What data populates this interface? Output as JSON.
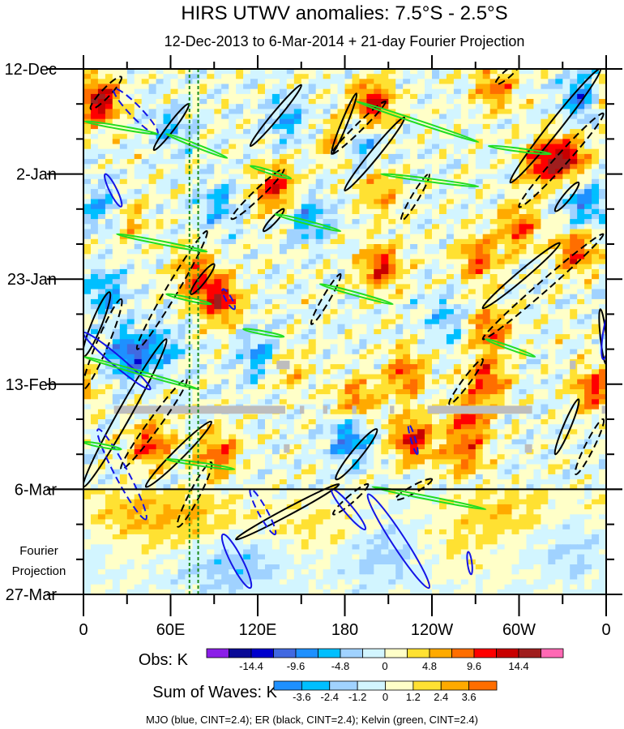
{
  "chart_data": {
    "type": "heatmap",
    "title": "HIRS UTWV anomalies: 7.5°S - 2.5°S",
    "subtitle": "12-Dec-2013 to 6-Mar-2014 + 21-day Fourier Projection",
    "x_axis": {
      "range_deg_east": [
        0,
        360
      ],
      "major_ticks": [
        0,
        60,
        120,
        180,
        240,
        300,
        360
      ],
      "tick_labels": [
        "0",
        "60E",
        "120E",
        "180",
        "120W",
        "60W",
        "0"
      ],
      "minor_step": 30
    },
    "y_axis": {
      "range_days": [
        0,
        105
      ],
      "major_ticks_days": [
        0,
        21,
        42,
        63,
        84,
        105
      ],
      "tick_labels": [
        "12-Dec",
        "2-Jan",
        "23-Jan",
        "13-Feb",
        "6-Mar",
        "27-Mar"
      ],
      "minor_step_days": 7,
      "projection_start_day": 84,
      "projection_label": [
        "Fourier",
        "Projection"
      ]
    },
    "reference_longitudes": [
      73,
      79
    ],
    "obs_colorbar": {
      "label": "Obs: K",
      "levels": [
        -16.8,
        -14.4,
        -12,
        -9.6,
        -7.2,
        -4.8,
        -2.4,
        0,
        2.4,
        4.8,
        7.2,
        9.6,
        12,
        14.4,
        16.8
      ],
      "tick_labels": [
        "-14.4",
        "-9.6",
        "-4.8",
        "0",
        "4.8",
        "9.6",
        "14.4"
      ],
      "tick_values": [
        -14.4,
        -9.6,
        -4.8,
        0,
        4.8,
        9.6,
        14.4
      ],
      "colors": [
        "#8b1ee8",
        "#0a0a96",
        "#0000cd",
        "#4169e1",
        "#1e90ff",
        "#00bfff",
        "#a0d2ff",
        "#d2f5ff",
        "#ffffc8",
        "#ffe132",
        "#ffaa00",
        "#ff6e00",
        "#ff0000",
        "#c80000",
        "#a01e1e",
        "#ff69b4"
      ]
    },
    "waves_colorbar": {
      "label": "Sum of Waves: K",
      "levels": [
        -3.6,
        -2.4,
        -1.2,
        0,
        1.2,
        2.4,
        3.6
      ],
      "tick_labels": [
        "-3.6",
        "-2.4",
        "-1.2",
        "0",
        "1.2",
        "2.4",
        "3.6"
      ],
      "tick_values": [
        -3.6,
        -2.4,
        -1.2,
        0,
        1.2,
        2.4,
        3.6
      ],
      "colors": [
        "#1e90ff",
        "#00bfff",
        "#a0d2ff",
        "#d2f5ff",
        "#ffffc8",
        "#ffe132",
        "#ffaa00",
        "#ff6e00"
      ]
    },
    "legend_text": "MJO (blue, CINT=2.4); ER (black, CINT=2.4); Kelvin (green, CINT=2.4)",
    "wave_colors": {
      "MJO": "#1414e6",
      "ER": "#000000",
      "Kelvin": "#22dd22"
    },
    "obs_anomaly_centers": [
      {
        "lon": 10,
        "day": 6.5,
        "amp": 15
      },
      {
        "lon": 199,
        "day": 7,
        "amp": 12
      },
      {
        "lon": 177,
        "day": 14.5,
        "amp": 8
      },
      {
        "lon": 283,
        "day": 4,
        "amp": 8
      },
      {
        "lon": 333,
        "day": 18,
        "amp": 12
      },
      {
        "lon": 316,
        "day": 18.6,
        "amp": 10
      },
      {
        "lon": 132,
        "day": 24,
        "amp": 11
      },
      {
        "lon": 300,
        "day": 31.6,
        "amp": 9
      },
      {
        "lon": 339,
        "day": 36.5,
        "amp": 10
      },
      {
        "lon": 205,
        "day": 39.7,
        "amp": 11
      },
      {
        "lon": 93,
        "day": 46,
        "amp": 13
      },
      {
        "lon": 76,
        "day": 41,
        "amp": 8
      },
      {
        "lon": 272,
        "day": 38,
        "amp": 9
      },
      {
        "lon": 280,
        "day": 52,
        "amp": 9
      },
      {
        "lon": 278,
        "day": 62,
        "amp": 10
      },
      {
        "lon": 266,
        "day": 70,
        "amp": 9
      },
      {
        "lon": 262,
        "day": 77,
        "amp": 8
      },
      {
        "lon": 188,
        "day": 66,
        "amp": 8
      },
      {
        "lon": 222,
        "day": 61,
        "amp": 9
      },
      {
        "lon": 227,
        "day": 74,
        "amp": 12
      },
      {
        "lon": 46,
        "day": 75,
        "amp": 10
      },
      {
        "lon": 93,
        "day": 77,
        "amp": 9
      },
      {
        "lon": 352,
        "day": 64,
        "amp": 10
      },
      {
        "lon": 205,
        "day": 25,
        "amp": 6
      },
      {
        "lon": 30,
        "day": 30,
        "amp": 6
      },
      {
        "lon": 140,
        "day": 60,
        "amp": 5
      },
      {
        "lon": 15,
        "day": 28,
        "amp": -7
      },
      {
        "lon": 32,
        "day": 57,
        "amp": -11
      },
      {
        "lon": 121,
        "day": 57.5,
        "amp": -7
      },
      {
        "lon": 183,
        "day": 74,
        "amp": -9
      },
      {
        "lon": 344,
        "day": 5.7,
        "amp": -9
      },
      {
        "lon": 188,
        "day": 15,
        "amp": -8
      },
      {
        "lon": 155,
        "day": 30,
        "amp": -7
      },
      {
        "lon": 54,
        "day": 56,
        "amp": -6
      },
      {
        "lon": 93,
        "day": 27,
        "amp": -6
      },
      {
        "lon": 15,
        "day": 44.6,
        "amp": -7
      },
      {
        "lon": 344,
        "day": 27,
        "amp": -8
      },
      {
        "lon": 250,
        "day": 50,
        "amp": -5
      },
      {
        "lon": 60,
        "day": 12,
        "amp": -5
      },
      {
        "lon": 140,
        "day": 10,
        "amp": -6
      }
    ],
    "projection_anomaly_centers": [
      {
        "lon": 26,
        "day": 89,
        "amp": 2
      },
      {
        "lon": 75,
        "day": 90,
        "amp": 2.2
      },
      {
        "lon": 160,
        "day": 92,
        "amp": 1.6
      },
      {
        "lon": 290,
        "day": 88,
        "amp": 2
      },
      {
        "lon": 250,
        "day": 96,
        "amp": 1.4
      },
      {
        "lon": 104,
        "day": 99,
        "amp": -2.2
      },
      {
        "lon": 210,
        "day": 97,
        "amp": -2
      },
      {
        "lon": 340,
        "day": 96,
        "amp": -1.4
      }
    ],
    "missing_data": [
      {
        "lon": [
          21,
          139
        ],
        "day": [
          67.3,
          68.9
        ]
      },
      {
        "lon": [
          149,
          152
        ],
        "day": [
          67.3,
          68.9
        ]
      },
      {
        "lon": [
          165,
          168
        ],
        "day": [
          67.3,
          68.9
        ]
      },
      {
        "lon": [
          185,
          188
        ],
        "day": [
          67.3,
          68.9
        ]
      },
      {
        "lon": [
          211,
          214
        ],
        "day": [
          67.3,
          68.9
        ]
      },
      {
        "lon": [
          237,
          309
        ],
        "day": [
          67.3,
          68.9
        ]
      },
      {
        "lon": [
          357,
          360
        ],
        "day": [
          67.3,
          68.9
        ]
      },
      {
        "lon": [
          133,
          142
        ],
        "day": [
          58.3,
          60
        ]
      },
      {
        "lon": [
          335,
          339
        ],
        "day": [
          58.3,
          60
        ]
      },
      {
        "lon": [
          138,
          142
        ],
        "day": [
          75,
          76.7
        ]
      },
      {
        "lon": [
          304,
          309
        ],
        "day": [
          75,
          76.7
        ]
      }
    ],
    "wave_contours": [
      {
        "wave": "ER",
        "sign": 1,
        "p1": [
          48.5,
          16.2
        ],
        "p2": [
          72.5,
          7
        ],
        "w": 5
      },
      {
        "wave": "ER",
        "sign": 1,
        "p1": [
          115,
          15.4
        ],
        "p2": [
          150,
          3.2
        ],
        "w": 5
      },
      {
        "wave": "ER",
        "sign": 1,
        "p1": [
          171,
          17
        ],
        "p2": [
          188,
          4.9
        ],
        "w": 4
      },
      {
        "wave": "ER",
        "sign": 1,
        "p1": [
          180,
          24.3
        ],
        "p2": [
          221,
          9.7
        ],
        "w": 6
      },
      {
        "wave": "ER",
        "sign": -1,
        "p1": [
          171,
          17
        ],
        "p2": [
          208,
          6.5
        ],
        "w": 5
      },
      {
        "wave": "ER",
        "sign": -1,
        "p1": [
          5,
          8
        ],
        "p2": [
          26,
          1.6
        ],
        "w": 6
      },
      {
        "wave": "ER",
        "sign": -1,
        "p1": [
          102,
          30
        ],
        "p2": [
          138,
          20
        ],
        "w": 6
      },
      {
        "wave": "ER",
        "sign": 1,
        "p1": [
          124,
          32.4
        ],
        "p2": [
          138,
          28
        ],
        "w": 4
      },
      {
        "wave": "ER",
        "sign": -1,
        "p1": [
          219,
          30.3
        ],
        "p2": [
          238,
          21
        ],
        "w": 5
      },
      {
        "wave": "ER",
        "sign": 1,
        "p1": [
          294,
          22.7
        ],
        "p2": [
          356,
          0
        ],
        "w": 8
      },
      {
        "wave": "ER",
        "sign": -1,
        "p1": [
          300,
          27.6
        ],
        "p2": [
          358,
          8.9
        ],
        "w": 8
      },
      {
        "wave": "ER",
        "sign": 1,
        "p1": [
          325,
          28.4
        ],
        "p2": [
          341,
          22.7
        ],
        "w": 5
      },
      {
        "wave": "ER",
        "sign": -1,
        "p1": [
          284,
          3
        ],
        "p2": [
          300,
          -1
        ],
        "w": 5
      },
      {
        "wave": "ER",
        "sign": 1,
        "p1": [
          275,
          47.8
        ],
        "p2": [
          328,
          34.8
        ],
        "w": 6
      },
      {
        "wave": "ER",
        "sign": -1,
        "p1": [
          275,
          54
        ],
        "p2": [
          358,
          33
        ],
        "w": 7
      },
      {
        "wave": "ER",
        "sign": -1,
        "p1": [
          157,
          51
        ],
        "p2": [
          177,
          41
        ],
        "w": 5
      },
      {
        "wave": "ER",
        "sign": -1,
        "p1": [
          37,
          56
        ],
        "p2": [
          85,
          32.4
        ],
        "w": 8
      },
      {
        "wave": "ER",
        "sign": 1,
        "p1": [
          74,
          45
        ],
        "p2": [
          90,
          39
        ],
        "w": 5
      },
      {
        "wave": "ER",
        "sign": 1,
        "p1": [
          0,
          57.5
        ],
        "p2": [
          18,
          44.6
        ],
        "w": 7
      },
      {
        "wave": "ER",
        "sign": -1,
        "p1": [
          0,
          64
        ],
        "p2": [
          26,
          46
        ],
        "w": 8
      },
      {
        "wave": "ER",
        "sign": 1,
        "p1": [
          0,
          83.5
        ],
        "p2": [
          57,
          54
        ],
        "w": 9
      },
      {
        "wave": "ER",
        "sign": -1,
        "p1": [
          26,
          80
        ],
        "p2": [
          71,
          62
        ],
        "w": 8
      },
      {
        "wave": "ER",
        "sign": 1,
        "p1": [
          43,
          83.5
        ],
        "p2": [
          88,
          70.5
        ],
        "w": 7
      },
      {
        "wave": "ER",
        "sign": 1,
        "p1": [
          174,
          82
        ],
        "p2": [
          202,
          72
        ],
        "w": 7
      },
      {
        "wave": "ER",
        "sign": -1,
        "p1": [
          252,
          67
        ],
        "p2": [
          275,
          58
        ],
        "w": 5
      },
      {
        "wave": "ER",
        "sign": 1,
        "p1": [
          325,
          77
        ],
        "p2": [
          341,
          66
        ],
        "w": 5
      },
      {
        "wave": "ER",
        "sign": -1,
        "p1": [
          339,
          81
        ],
        "p2": [
          358,
          70
        ],
        "w": 6
      },
      {
        "wave": "ER",
        "sign": 1,
        "p1": [
          360,
          59
        ],
        "p2": [
          356,
          48
        ],
        "w": 4
      },
      {
        "wave": "ER",
        "sign": 1,
        "p1": [
          105,
          94
        ],
        "p2": [
          176,
          83
        ],
        "w": 5
      },
      {
        "wave": "ER",
        "sign": -1,
        "p1": [
          172,
          89
        ],
        "p2": [
          196,
          83
        ],
        "w": 5
      },
      {
        "wave": "ER",
        "sign": -1,
        "p1": [
          65,
          91.5
        ],
        "p2": [
          88,
          78.6
        ],
        "w": 7
      },
      {
        "wave": "ER",
        "sign": -1,
        "p1": [
          215,
          86
        ],
        "p2": [
          240,
          82
        ],
        "w": 5
      },
      {
        "wave": "MJO",
        "sign": -1,
        "p1": [
          21,
          4
        ],
        "p2": [
          51,
          13
        ],
        "w": 8
      },
      {
        "wave": "MJO",
        "sign": 1,
        "p1": [
          15,
          21
        ],
        "p2": [
          26,
          27.5
        ],
        "w": 5
      },
      {
        "wave": "MJO",
        "sign": -1,
        "p1": [
          96,
          44
        ],
        "p2": [
          104,
          48
        ],
        "w": 4
      },
      {
        "wave": "MJO",
        "sign": 1,
        "p1": [
          0,
          52.7
        ],
        "p2": [
          46,
          64
        ],
        "w": 7
      },
      {
        "wave": "MJO",
        "sign": -1,
        "p1": [
          10,
          72
        ],
        "p2": [
          43,
          90
        ],
        "w": 9
      },
      {
        "wave": "MJO",
        "sign": -1,
        "p1": [
          115,
          84
        ],
        "p2": [
          132,
          93
        ],
        "w": 6
      },
      {
        "wave": "MJO",
        "sign": 1,
        "p1": [
          96,
          93
        ],
        "p2": [
          115,
          103.7
        ],
        "w": 8
      },
      {
        "wave": "MJO",
        "sign": 1,
        "p1": [
          196,
          85
        ],
        "p2": [
          238,
          103.7
        ],
        "w": 9
      },
      {
        "wave": "MJO",
        "sign": 1,
        "p1": [
          171,
          84
        ],
        "p2": [
          194,
          92
        ],
        "w": 6
      },
      {
        "wave": "MJO",
        "sign": -1,
        "p1": [
          224,
          71
        ],
        "p2": [
          230,
          77
        ],
        "w": 3
      },
      {
        "wave": "MJO",
        "sign": 1,
        "p1": [
          265,
          96.5
        ],
        "p2": [
          267,
          101
        ],
        "w": 3
      },
      {
        "wave": "MJO",
        "sign": 1,
        "p1": [
          362,
          49
        ],
        "p2": [
          358,
          58
        ],
        "w": 5
      },
      {
        "wave": "Kelvin",
        "sign": 1,
        "p1": [
          1,
          10.5
        ],
        "p2": [
          51,
          13
        ],
        "w": 1.5
      },
      {
        "wave": "Kelvin",
        "sign": 1,
        "p1": [
          57,
          13
        ],
        "p2": [
          99,
          17.8
        ],
        "w": 1.5
      },
      {
        "wave": "Kelvin",
        "sign": 1,
        "p1": [
          188,
          6.5
        ],
        "p2": [
          272,
          14.6
        ],
        "w": 2
      },
      {
        "wave": "Kelvin",
        "sign": 1,
        "p1": [
          279,
          15.4
        ],
        "p2": [
          322,
          17
        ],
        "w": 1.5
      },
      {
        "wave": "Kelvin",
        "sign": 1,
        "p1": [
          115,
          19.4
        ],
        "p2": [
          143,
          21.9
        ],
        "w": 1.5
      },
      {
        "wave": "Kelvin",
        "sign": 1,
        "p1": [
          205,
          21
        ],
        "p2": [
          272,
          23.5
        ],
        "w": 1.8
      },
      {
        "wave": "Kelvin",
        "sign": 1,
        "p1": [
          132,
          29
        ],
        "p2": [
          177,
          32.4
        ],
        "w": 1.5
      },
      {
        "wave": "Kelvin",
        "sign": 1,
        "p1": [
          23,
          33
        ],
        "p2": [
          85,
          36.5
        ],
        "w": 1.8
      },
      {
        "wave": "Kelvin",
        "sign": 1,
        "p1": [
          57,
          45
        ],
        "p2": [
          88,
          47
        ],
        "w": 1.5
      },
      {
        "wave": "Kelvin",
        "sign": 1,
        "p1": [
          163,
          43
        ],
        "p2": [
          213,
          47
        ],
        "w": 1.8
      },
      {
        "wave": "Kelvin",
        "sign": 1,
        "p1": [
          110,
          52
        ],
        "p2": [
          138,
          53.5
        ],
        "w": 1.5
      },
      {
        "wave": "Kelvin",
        "sign": 1,
        "p1": [
          0,
          57.5
        ],
        "p2": [
          79,
          64
        ],
        "w": 2
      },
      {
        "wave": "Kelvin",
        "sign": 1,
        "p1": [
          277,
          54
        ],
        "p2": [
          311,
          57.5
        ],
        "w": 1.5
      },
      {
        "wave": "Kelvin",
        "sign": 1,
        "p1": [
          0,
          74.6
        ],
        "p2": [
          26,
          76
        ],
        "w": 1.5
      },
      {
        "wave": "Kelvin",
        "sign": 1,
        "p1": [
          57,
          78
        ],
        "p2": [
          104,
          80
        ],
        "w": 1.5
      },
      {
        "wave": "Kelvin",
        "sign": 1,
        "p1": [
          199,
          83.5
        ],
        "p2": [
          277,
          88
        ],
        "w": 1.8
      }
    ]
  }
}
